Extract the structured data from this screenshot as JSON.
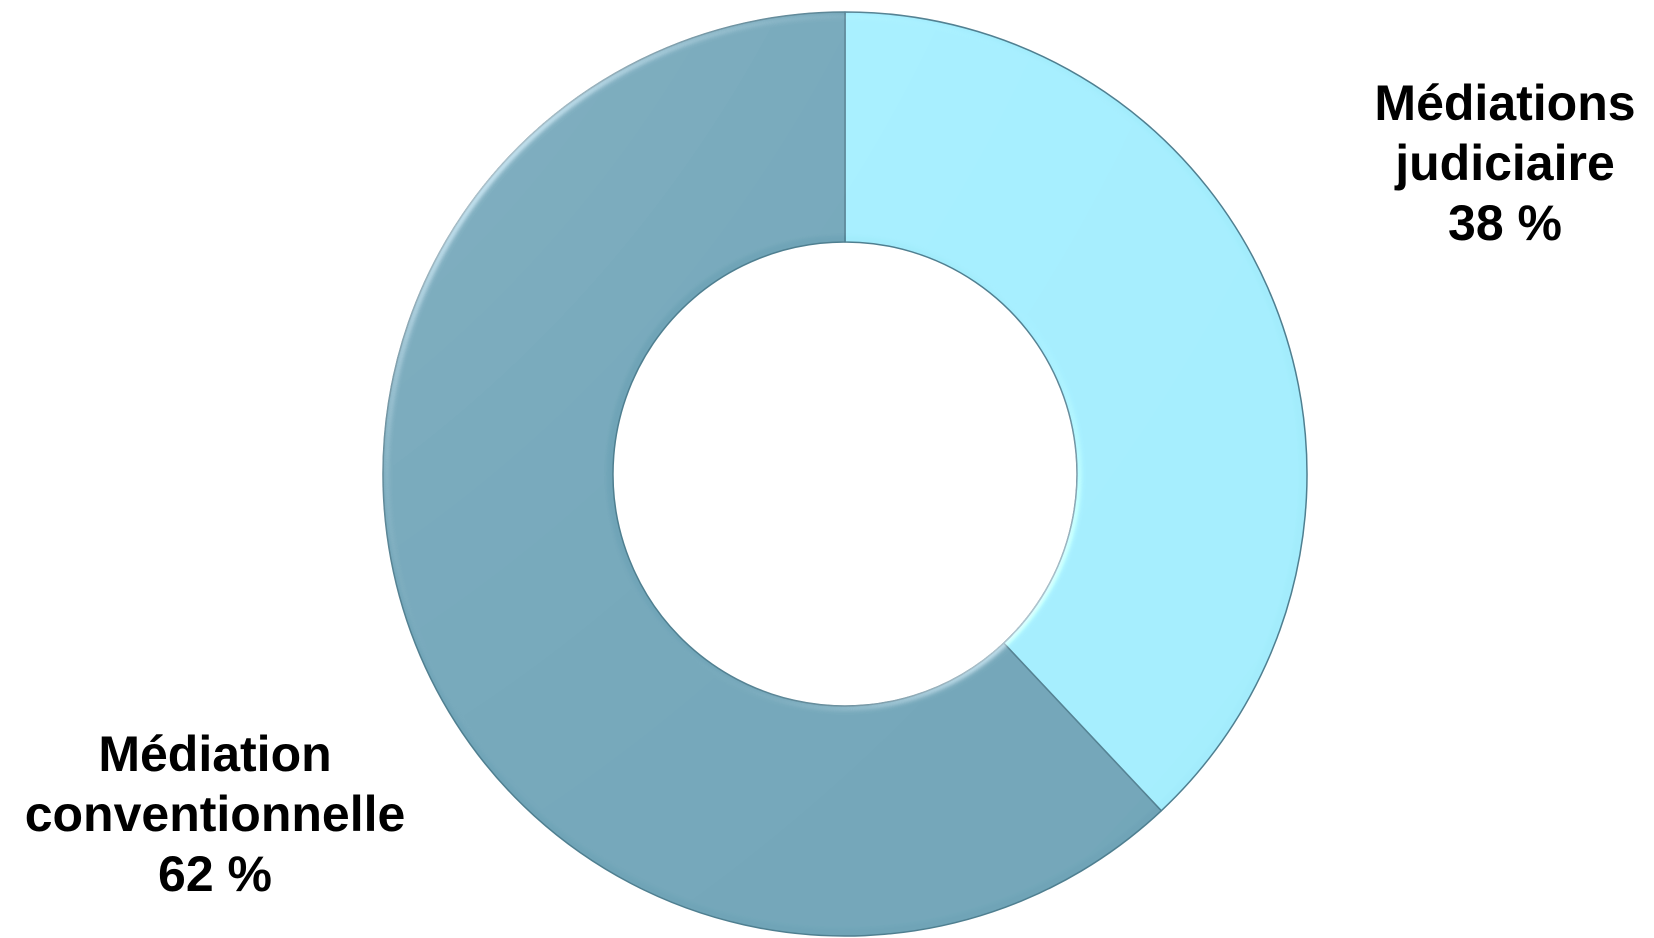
{
  "chart_data": {
    "type": "pie",
    "variant": "donut",
    "title": "",
    "slices": [
      {
        "name": "Médiations judiciaire",
        "label_lines": [
          "Médiations",
          "judiciaire"
        ],
        "value": 38,
        "value_label": "38 %",
        "color": "#a3ecfc"
      },
      {
        "name": "Médiation conventionnelle",
        "label_lines": [
          "Médiation",
          "conventionnelle"
        ],
        "value": 62,
        "value_label": "62 %",
        "color": "#6fa4b7"
      }
    ],
    "start_angle_deg": 0,
    "direction": "clockwise",
    "legend": "none"
  }
}
